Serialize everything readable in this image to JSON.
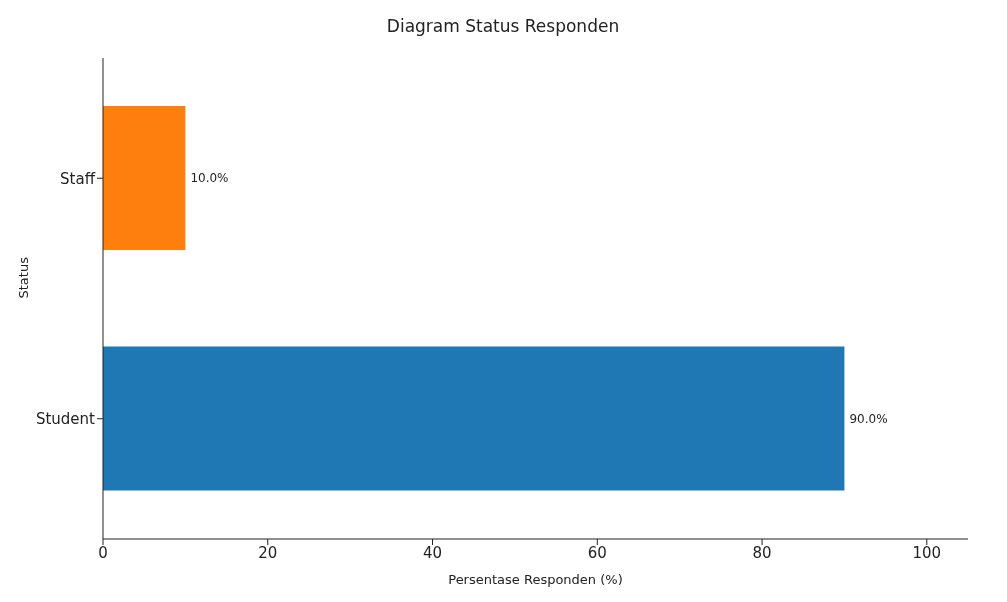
{
  "chart_data": {
    "type": "bar",
    "orientation": "horizontal",
    "title": "Diagram Status Responden",
    "xlabel": "Persentase Responden (%)",
    "ylabel": "Status",
    "categories": [
      "Staff",
      "Student"
    ],
    "values": [
      10,
      90
    ],
    "colors": [
      "#ff7f0e",
      "#1f77b4"
    ],
    "value_labels": [
      "10.0%",
      "90.0%"
    ],
    "xlim": [
      0,
      105
    ],
    "xticks": [
      0,
      20,
      40,
      60,
      80,
      100
    ],
    "grid": false
  }
}
